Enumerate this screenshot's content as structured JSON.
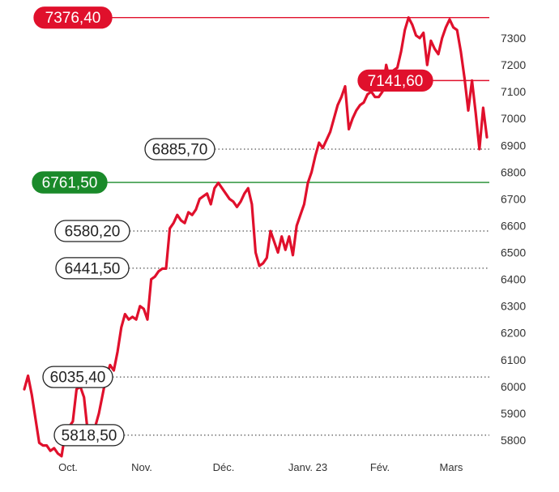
{
  "chart_data": {
    "type": "line",
    "title": "",
    "xlabel": "",
    "ylabel": "",
    "ylim": [
      5740,
      7420
    ],
    "y_ticks": [
      5800,
      5900,
      6000,
      6100,
      6200,
      6300,
      6400,
      6500,
      6600,
      6700,
      6800,
      6900,
      7000,
      7100,
      7200,
      7300
    ],
    "x_labels": [
      "Oct.",
      "Nov.",
      "Déc.",
      "Janv. 23",
      "Fév.",
      "Mars"
    ],
    "grid": false,
    "line_color": "#e0102c",
    "series": [
      {
        "values": [
          5990,
          6040,
          5970,
          5880,
          5790,
          5780,
          5780,
          5760,
          5770,
          5750,
          5740,
          5830,
          5850,
          5870,
          5990,
          6000,
          5960,
          5830,
          5820,
          5850,
          5900,
          5970,
          6040,
          6080,
          6060,
          6130,
          6220,
          6270,
          6250,
          6260,
          6250,
          6300,
          6290,
          6250,
          6400,
          6410,
          6430,
          6440,
          6440,
          6590,
          6610,
          6640,
          6620,
          6610,
          6650,
          6640,
          6660,
          6700,
          6710,
          6720,
          6680,
          6740,
          6760,
          6740,
          6720,
          6700,
          6690,
          6670,
          6690,
          6720,
          6740,
          6680,
          6500,
          6450,
          6460,
          6480,
          6580,
          6540,
          6500,
          6560,
          6510,
          6560,
          6490,
          6600,
          6640,
          6680,
          6760,
          6800,
          6860,
          6910,
          6890,
          6920,
          6950,
          7000,
          7050,
          7080,
          7120,
          6960,
          7000,
          7030,
          7050,
          7060,
          7090,
          7100,
          7080,
          7080,
          7100,
          7200,
          7141.6,
          7180,
          7190,
          7250,
          7330,
          7376.4,
          7350,
          7310,
          7300,
          7320,
          7200,
          7290,
          7260,
          7240,
          7300,
          7340,
          7370,
          7340,
          7330,
          7250,
          7150,
          7030,
          7141.6,
          7020,
          6885.7,
          7040,
          6930
        ]
      }
    ],
    "reference_lines": [
      {
        "value": 7376.4,
        "label": "7376,40",
        "style": "solid",
        "color": "#e0102c",
        "badge_fill": "#e0102c",
        "badge_text": "#ffffff"
      },
      {
        "value": 7141.6,
        "label": "7141,60",
        "style": "solid",
        "color": "#e0102c",
        "badge_fill": "#e0102c",
        "badge_text": "#ffffff"
      },
      {
        "value": 6885.7,
        "label": "6885,70",
        "style": "dotted",
        "color": "#555555",
        "badge_fill": "#ffffff",
        "badge_text": "#222222"
      },
      {
        "value": 6761.5,
        "label": "6761,50",
        "style": "solid",
        "color": "#1a8a2a",
        "badge_fill": "#1a8a2a",
        "badge_text": "#ffffff"
      },
      {
        "value": 6580.2,
        "label": "6580,20",
        "style": "dotted",
        "color": "#555555",
        "badge_fill": "#ffffff",
        "badge_text": "#222222"
      },
      {
        "value": 6441.5,
        "label": "6441,50",
        "style": "dotted",
        "color": "#555555",
        "badge_fill": "#ffffff",
        "badge_text": "#222222"
      },
      {
        "value": 6035.4,
        "label": "6035,40",
        "style": "dotted",
        "color": "#555555",
        "badge_fill": "#ffffff",
        "badge_text": "#222222"
      },
      {
        "value": 5818.5,
        "label": "5818,50",
        "style": "dotted",
        "color": "#555555",
        "badge_fill": "#ffffff",
        "badge_text": "#222222"
      }
    ]
  }
}
